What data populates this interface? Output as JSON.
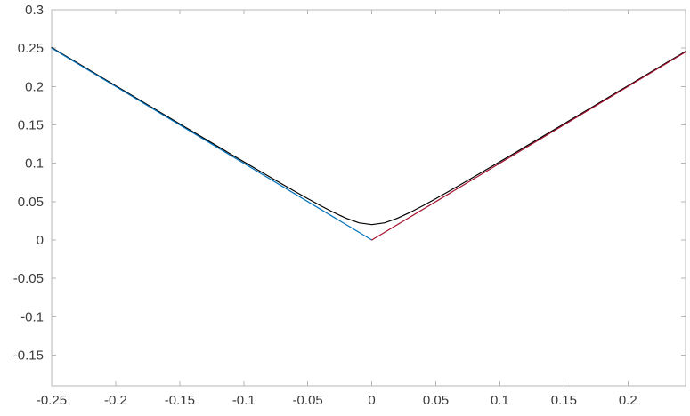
{
  "figure": {
    "background": "#ffffff",
    "axis_color": "#b5b5b5",
    "tick_color": "#b5b5b5",
    "tick_label_color": "#3b3b3b"
  },
  "chart_data": {
    "type": "line",
    "title": "",
    "xlabel": "",
    "ylabel": "",
    "grid": false,
    "legend": null,
    "xlim": [
      -0.25,
      0.245
    ],
    "ylim": [
      -0.19,
      0.3
    ],
    "x_ticks": [
      -0.25,
      -0.2,
      -0.15,
      -0.1,
      -0.05,
      0,
      0.05,
      0.1,
      0.15,
      0.2
    ],
    "x_tick_labels": [
      "-0.25",
      "-0.2",
      "-0.15",
      "-0.1",
      "-0.05",
      "0",
      "0.05",
      "0.1",
      "0.15",
      "0.2"
    ],
    "y_ticks": [
      -0.15,
      -0.1,
      -0.05,
      0,
      0.05,
      0.1,
      0.15,
      0.2,
      0.25,
      0.3
    ],
    "y_tick_labels": [
      "-0.15",
      "-0.1",
      "-0.05",
      "0",
      "0.05",
      "0.1",
      "0.15",
      "0.2",
      "0.25",
      "0.3"
    ],
    "series": [
      {
        "name": "smooth-approximation-curve",
        "color": "#000000",
        "width": 1.2,
        "x": [
          -0.25,
          -0.24,
          -0.23,
          -0.22,
          -0.21,
          -0.2,
          -0.19,
          -0.18,
          -0.17,
          -0.16,
          -0.15,
          -0.14,
          -0.13,
          -0.12,
          -0.11,
          -0.1,
          -0.09,
          -0.08,
          -0.07,
          -0.06,
          -0.05,
          -0.04,
          -0.03,
          -0.02,
          -0.01,
          0,
          0.01,
          0.02,
          0.03,
          0.04,
          0.05,
          0.06,
          0.07,
          0.08,
          0.09,
          0.1,
          0.11,
          0.12,
          0.13,
          0.14,
          0.15,
          0.16,
          0.17,
          0.18,
          0.19,
          0.2,
          0.21,
          0.22,
          0.23,
          0.24,
          0.245
        ],
        "y": [
          0.2508,
          0.24083,
          0.23087,
          0.22091,
          0.21095,
          0.201,
          0.19105,
          0.18111,
          0.17117,
          0.16125,
          0.15133,
          0.14142,
          0.13153,
          0.12166,
          0.1118,
          0.10198,
          0.0922,
          0.08246,
          0.0728,
          0.06325,
          0.05385,
          0.04472,
          0.03606,
          0.02828,
          0.02236,
          0.02,
          0.02236,
          0.02828,
          0.03606,
          0.04472,
          0.05385,
          0.06325,
          0.0728,
          0.08246,
          0.0922,
          0.10198,
          0.1118,
          0.12166,
          0.13153,
          0.14142,
          0.15133,
          0.16125,
          0.17117,
          0.18111,
          0.19105,
          0.201,
          0.21095,
          0.22091,
          0.23087,
          0.24083,
          0.24582
        ]
      },
      {
        "name": "abs-line-negative-branch",
        "color": "#0072bd",
        "width": 1.2,
        "x": [
          -0.25,
          0
        ],
        "y": [
          0.25,
          0
        ]
      },
      {
        "name": "abs-line-positive-branch",
        "color": "#a2142f",
        "width": 1.2,
        "x": [
          0,
          0.245
        ],
        "y": [
          0,
          0.245
        ]
      }
    ]
  }
}
